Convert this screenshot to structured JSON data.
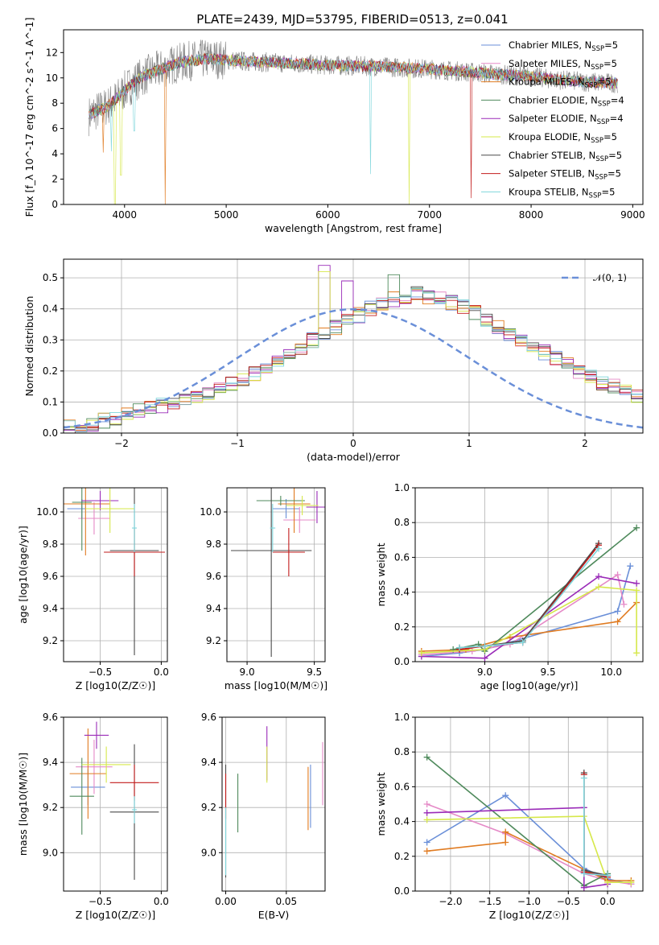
{
  "figure": {
    "title": "PLATE=2439, MJD=53795, FIBERID=0513, z=0.041"
  },
  "model_colors": {
    "Chabrier MILES": "#6a8fd8",
    "Salpeter MILES": "#e58ac7",
    "Kroupa MILES": "#e07b21",
    "Chabrier ELODIE": "#4f8a5c",
    "Salpeter ELODIE": "#9a2bb8",
    "Kroupa ELODIE": "#d6e84a",
    "Chabrier STELIB": "#4a4a4a",
    "Salpeter STELIB": "#c21b1b",
    "Kroupa STELIB": "#7fd6dc",
    "data_spectrum": "#808080"
  },
  "chart_data": [
    {
      "id": "spectrum",
      "type": "line",
      "title": "PLATE=2439, MJD=53795, FIBERID=0513, z=0.041",
      "xlabel": "wavelength [Angstrom, rest frame]",
      "ylabel": "Flux [f_λ 10^-17 erg cm^-2 s^-1 A^-1]",
      "xlim": [
        3400,
        9100
      ],
      "ylim": [
        0,
        13.8
      ],
      "xticks": [
        4000,
        5000,
        6000,
        7000,
        8000,
        9000
      ],
      "yticks": [
        0,
        2,
        4,
        6,
        8,
        10,
        12
      ],
      "legend": "upper-right",
      "series": [
        {
          "name": "Chabrier MILES, N_SSP=5",
          "label_main": "Chabrier MILES, N",
          "label_sub": "SSP",
          "label_end": "=5"
        },
        {
          "name": "Salpeter MILES, N_SSP=5",
          "label_main": "Salpeter MILES, N",
          "label_sub": "SSP",
          "label_end": "=5"
        },
        {
          "name": "Kroupa MILES, N_SSP=5",
          "label_main": "Kroupa MILES, N",
          "label_sub": "SSP",
          "label_end": "=5"
        },
        {
          "name": "Chabrier ELODIE, N_SSP=4",
          "label_main": "Chabrier ELODIE, N",
          "label_sub": "SSP",
          "label_end": "=4"
        },
        {
          "name": "Salpeter ELODIE, N_SSP=4",
          "label_main": "Salpeter ELODIE, N",
          "label_sub": "SSP",
          "label_end": "=4"
        },
        {
          "name": "Kroupa ELODIE, N_SSP=5",
          "label_main": "Kroupa ELODIE, N",
          "label_sub": "SSP",
          "label_end": "=5"
        },
        {
          "name": "Chabrier STELIB, N_SSP=5",
          "label_main": "Chabrier STELIB, N",
          "label_sub": "SSP",
          "label_end": "=5"
        },
        {
          "name": "Salpeter STELIB, N_SSP=5",
          "label_main": "Salpeter STELIB, N",
          "label_sub": "SSP",
          "label_end": "=5"
        },
        {
          "name": "Kroupa STELIB, N_SSP=5",
          "label_main": "Kroupa STELIB, N",
          "label_sub": "SSP",
          "label_end": "=5"
        }
      ],
      "spectrum_profile": {
        "x": [
          3650,
          3700,
          3800,
          3900,
          4000,
          4100,
          4200,
          4300,
          4400,
          4500,
          4600,
          4700,
          4800,
          4900,
          5000,
          5200,
          5500,
          6000,
          6500,
          7000,
          7500,
          7800,
          8000,
          8200,
          8500,
          8800
        ],
        "y": [
          7.0,
          7.3,
          7.6,
          8.2,
          9.0,
          9.7,
          10.2,
          10.5,
          10.8,
          11.1,
          11.3,
          11.4,
          11.5,
          11.5,
          11.4,
          11.3,
          11.2,
          11.0,
          10.9,
          10.7,
          10.4,
          10.2,
          10.1,
          9.9,
          9.7,
          9.6
        ]
      },
      "model_dips": [
        {
          "series": "Kroupa ELODIE, N_SSP=5",
          "x": 3905,
          "y": 0.0
        },
        {
          "series": "Kroupa ELODIE, N_SSP=5",
          "x": 3965,
          "y": 2.3
        },
        {
          "series": "Kroupa MILES, N_SSP=5",
          "x": 3790,
          "y": 4.1
        },
        {
          "series": "Kroupa STELIB, N_SSP=5",
          "x": 3870,
          "y": 4.2
        },
        {
          "series": "Kroupa STELIB, N_SSP=5",
          "x": 4095,
          "y": 5.8
        },
        {
          "series": "Kroupa MILES, N_SSP=5",
          "x": 4400,
          "y": 0.0
        },
        {
          "series": "Kroupa STELIB, N_SSP=5",
          "x": 6420,
          "y": 2.4
        },
        {
          "series": "Kroupa ELODIE, N_SSP=5",
          "x": 6800,
          "y": 0.0
        },
        {
          "series": "Salpeter STELIB, N_SSP=5",
          "x": 7410,
          "y": 0.5
        }
      ]
    },
    {
      "id": "residuals",
      "type": "line",
      "xlabel": "(data-model)/error",
      "ylabel": "Normed distribution",
      "xlim": [
        -2.5,
        2.5
      ],
      "ylim": [
        0,
        0.56
      ],
      "xticks": [
        -2,
        -1,
        0,
        1,
        2
      ],
      "yticks": [
        0.0,
        0.1,
        0.2,
        0.3,
        0.4,
        0.5
      ],
      "legend": "upper-right",
      "reference": {
        "name": "N(0,1)",
        "label": "𝒩(0, 1)",
        "mean": 0,
        "sigma": 1
      },
      "bin_edges_from": -2.5,
      "bin_width": 0.1,
      "base_values": [
        0.02,
        0.02,
        0.03,
        0.04,
        0.05,
        0.06,
        0.07,
        0.08,
        0.09,
        0.1,
        0.11,
        0.12,
        0.13,
        0.14,
        0.16,
        0.17,
        0.19,
        0.21,
        0.23,
        0.25,
        0.27,
        0.3,
        0.32,
        0.34,
        0.36,
        0.38,
        0.4,
        0.42,
        0.43,
        0.44,
        0.45,
        0.44,
        0.43,
        0.42,
        0.41,
        0.39,
        0.36,
        0.34,
        0.32,
        0.3,
        0.28,
        0.26,
        0.24,
        0.22,
        0.2,
        0.18,
        0.16,
        0.15,
        0.14,
        0.12,
        0.11,
        0.1,
        0.09,
        0.08,
        0.07,
        0.06,
        0.05,
        0.04,
        0.04,
        0.03,
        0.03,
        0.02,
        0.02,
        0.02
      ],
      "peaks": [
        {
          "series": "Kroupa ELODIE, N_SSP=5",
          "x": -0.25,
          "y": 0.52
        },
        {
          "series": "Salpeter ELODIE, N_SSP=4",
          "x": -0.25,
          "y": 0.54
        },
        {
          "series": "Chabrier ELODIE, N_SSP=4",
          "x": 0.35,
          "y": 0.51
        },
        {
          "series": "Salpeter ELODIE, N_SSP=4",
          "x": -0.05,
          "y": 0.49
        }
      ]
    },
    {
      "id": "Z-age",
      "type": "scatter",
      "xlabel": "Z [log10(Z/Z☉)]",
      "ylabel": "age [log10(age/yr)]",
      "xlim": [
        -0.8,
        0.05
      ],
      "ylim": [
        9.07,
        10.15
      ],
      "xticks": [
        -0.5,
        0.0
      ],
      "yticks": [
        9.2,
        9.4,
        9.6,
        9.8,
        10.0
      ],
      "points": [
        {
          "series": "Chabrier MILES, N_SSP=5",
          "x": -0.65,
          "y": 10.02,
          "xerr": 0.12,
          "yerr": 0.06
        },
        {
          "series": "Salpeter MILES, N_SSP=5",
          "x": -0.55,
          "y": 9.96,
          "xerr": 0.13,
          "yerr": 0.1
        },
        {
          "series": "Kroupa MILES, N_SSP=5",
          "x": -0.62,
          "y": 10.05,
          "xerr": 0.2,
          "yerr": 0.32
        },
        {
          "series": "Chabrier ELODIE, N_SSP=4",
          "x": -0.65,
          "y": 10.06,
          "xerr": 0.08,
          "yerr": 0.3
        },
        {
          "series": "Salpeter ELODIE, N_SSP=4",
          "x": -0.5,
          "y": 10.07,
          "xerr": 0.15,
          "yerr": 0.06
        },
        {
          "series": "Kroupa ELODIE, N_SSP=5",
          "x": -0.42,
          "y": 10.02,
          "xerr": 0.2,
          "yerr": 0.15
        },
        {
          "series": "Chabrier STELIB, N_SSP=5",
          "x": -0.22,
          "y": 9.76,
          "xerr": 0.2,
          "yerr": 0.65
        },
        {
          "series": "Salpeter STELIB, N_SSP=5",
          "x": -0.22,
          "y": 9.75,
          "xerr": 0.25,
          "yerr": 0.15
        },
        {
          "series": "Kroupa STELIB, N_SSP=5",
          "x": -0.22,
          "y": 9.9,
          "xerr": 0.02,
          "yerr": 0.15
        }
      ]
    },
    {
      "id": "mass-age",
      "type": "scatter",
      "xlabel": "mass [log10(M/M☉)]",
      "ylabel": "",
      "xlim": [
        8.85,
        9.58
      ],
      "ylim": [
        9.07,
        10.15
      ],
      "xticks": [
        9.0,
        9.5
      ],
      "yticks": [
        9.2,
        9.4,
        9.6,
        9.8,
        10.0
      ],
      "points": [
        {
          "series": "Chabrier MILES, N_SSP=5",
          "x": 9.29,
          "y": 10.02,
          "xerr": 0.1,
          "yerr": 0.06
        },
        {
          "series": "Salpeter MILES, N_SSP=5",
          "x": 9.39,
          "y": 9.95,
          "xerr": 0.12,
          "yerr": 0.08
        },
        {
          "series": "Kroupa MILES, N_SSP=5",
          "x": 9.35,
          "y": 10.05,
          "xerr": 0.12,
          "yerr": 0.18
        },
        {
          "series": "Chabrier ELODIE, N_SSP=4",
          "x": 9.25,
          "y": 10.07,
          "xerr": 0.18,
          "yerr": 0.03
        },
        {
          "series": "Salpeter ELODIE, N_SSP=4",
          "x": 9.52,
          "y": 10.03,
          "xerr": 0.08,
          "yerr": 0.1
        },
        {
          "series": "Kroupa ELODIE, N_SSP=5",
          "x": 9.41,
          "y": 10.04,
          "xerr": 0.12,
          "yerr": 0.06
        },
        {
          "series": "Chabrier STELIB, N_SSP=5",
          "x": 9.18,
          "y": 9.76,
          "xerr": 0.3,
          "yerr": 0.66
        },
        {
          "series": "Salpeter STELIB, N_SSP=5",
          "x": 9.31,
          "y": 9.75,
          "xerr": 0.12,
          "yerr": 0.15
        },
        {
          "series": "Kroupa STELIB, N_SSP=5",
          "x": 9.19,
          "y": 9.9,
          "xerr": 0.02,
          "yerr": 0.15
        }
      ]
    },
    {
      "id": "age-massweight",
      "type": "line",
      "xlabel": "age [log10(age/yr)]",
      "ylabel": "mass weight",
      "xlim": [
        8.45,
        10.25
      ],
      "ylim": [
        0.0,
        1.0
      ],
      "xticks": [
        9.0,
        9.5,
        10.0
      ],
      "yticks": [
        0.0,
        0.2,
        0.4,
        0.6,
        0.8,
        1.0
      ],
      "series": [
        {
          "series": "Chabrier MILES, N_SSP=5",
          "x": [
            8.5,
            8.8,
            9.0,
            10.05,
            10.15
          ],
          "y": [
            0.03,
            0.05,
            0.07,
            0.29,
            0.55
          ]
        },
        {
          "series": "Salpeter MILES, N_SSP=5",
          "x": [
            8.5,
            8.9,
            9.2,
            10.05,
            10.1
          ],
          "y": [
            0.04,
            0.06,
            0.1,
            0.5,
            0.33
          ]
        },
        {
          "series": "Kroupa MILES, N_SSP=5",
          "x": [
            8.5,
            8.85,
            9.2,
            10.05,
            10.2
          ],
          "y": [
            0.06,
            0.07,
            0.14,
            0.23,
            0.34
          ]
        },
        {
          "series": "Chabrier ELODIE, N_SSP=4",
          "x": [
            8.75,
            8.95,
            9.0,
            10.2
          ],
          "y": [
            0.07,
            0.1,
            0.06,
            0.77
          ]
        },
        {
          "series": "Salpeter ELODIE, N_SSP=4",
          "x": [
            8.5,
            9.0,
            9.9,
            10.2
          ],
          "y": [
            0.03,
            0.02,
            0.49,
            0.45
          ]
        },
        {
          "series": "Kroupa ELODIE, N_SSP=5",
          "x": [
            8.5,
            9.0,
            9.9,
            10.2,
            10.2
          ],
          "y": [
            0.05,
            0.07,
            0.43,
            0.41,
            0.05
          ]
        },
        {
          "series": "Chabrier STELIB, N_SSP=5",
          "x": [
            8.8,
            9.0,
            9.3,
            9.9
          ],
          "y": [
            0.08,
            0.09,
            0.12,
            0.68
          ]
        },
        {
          "series": "Salpeter STELIB, N_SSP=5",
          "x": [
            8.8,
            9.0,
            9.3,
            9.9
          ],
          "y": [
            0.07,
            0.09,
            0.11,
            0.67
          ]
        },
        {
          "series": "Kroupa STELIB, N_SSP=5",
          "x": [
            8.8,
            9.0,
            9.3,
            9.9
          ],
          "y": [
            0.08,
            0.09,
            0.11,
            0.65
          ]
        }
      ]
    },
    {
      "id": "Z-mass",
      "type": "scatter",
      "xlabel": "Z [log10(Z/Z☉)]",
      "ylabel": "mass [log10(M/M☉)]",
      "xlim": [
        -0.8,
        0.05
      ],
      "ylim": [
        8.83,
        9.6
      ],
      "xticks": [
        -0.5,
        0.0
      ],
      "yticks": [
        9.0,
        9.2,
        9.4,
        9.6
      ],
      "points": [
        {
          "series": "Chabrier MILES, N_SSP=5",
          "x": -0.6,
          "y": 9.29,
          "xerr": 0.14,
          "yerr": 0.08
        },
        {
          "series": "Salpeter MILES, N_SSP=5",
          "x": -0.55,
          "y": 9.38,
          "xerr": 0.15,
          "yerr": 0.12
        },
        {
          "series": "Kroupa MILES, N_SSP=5",
          "x": -0.6,
          "y": 9.35,
          "xerr": 0.15,
          "yerr": 0.2
        },
        {
          "series": "Chabrier ELODIE, N_SSP=4",
          "x": -0.65,
          "y": 9.25,
          "xerr": 0.1,
          "yerr": 0.17
        },
        {
          "series": "Salpeter ELODIE, N_SSP=4",
          "x": -0.53,
          "y": 9.52,
          "xerr": 0.1,
          "yerr": 0.06
        },
        {
          "series": "Kroupa ELODIE, N_SSP=5",
          "x": -0.45,
          "y": 9.39,
          "xerr": 0.2,
          "yerr": 0.08
        },
        {
          "series": "Chabrier STELIB, N_SSP=5",
          "x": -0.22,
          "y": 9.18,
          "xerr": 0.2,
          "yerr": 0.3
        },
        {
          "series": "Salpeter STELIB, N_SSP=5",
          "x": -0.22,
          "y": 9.31,
          "xerr": 0.2,
          "yerr": 0.08
        },
        {
          "series": "Kroupa STELIB, N_SSP=5",
          "x": -0.22,
          "y": 9.19,
          "xerr": 0.02,
          "yerr": 0.06
        }
      ]
    },
    {
      "id": "ebv-mass",
      "type": "scatter",
      "xlabel": "E(B-V)",
      "ylabel": "",
      "xlim": [
        -0.003,
        0.082
      ],
      "ylim": [
        8.83,
        9.6
      ],
      "xticks": [
        0.0,
        0.05
      ],
      "yticks": [
        9.0,
        9.2,
        9.4,
        9.6
      ],
      "points": [
        {
          "series": "Chabrier MILES, N_SSP=5",
          "x": 0.07,
          "y": 9.25,
          "xerr": 0,
          "yerr": 0.14
        },
        {
          "series": "Salpeter MILES, N_SSP=5",
          "x": 0.08,
          "y": 9.35,
          "xerr": 0,
          "yerr": 0.14
        },
        {
          "series": "Kroupa MILES, N_SSP=5",
          "x": 0.068,
          "y": 9.24,
          "xerr": 0,
          "yerr": 0.14
        },
        {
          "series": "Chabrier ELODIE, N_SSP=4",
          "x": 0.01,
          "y": 9.22,
          "xerr": 0,
          "yerr": 0.13
        },
        {
          "series": "Salpeter ELODIE, N_SSP=4",
          "x": 0.034,
          "y": 9.44,
          "xerr": 0,
          "yerr": 0.12
        },
        {
          "series": "Kroupa ELODIE, N_SSP=5",
          "x": 0.034,
          "y": 9.39,
          "xerr": 0,
          "yerr": 0.08
        },
        {
          "series": "Chabrier STELIB, N_SSP=5",
          "x": 0.0,
          "y": 9.14,
          "xerr": 0,
          "yerr": 0.25
        },
        {
          "series": "Salpeter STELIB, N_SSP=5",
          "x": 0.0,
          "y": 9.25,
          "xerr": 0,
          "yerr": 0.1
        },
        {
          "series": "Kroupa STELIB, N_SSP=5",
          "x": 0.0,
          "y": 9.05,
          "xerr": 0,
          "yerr": 0.15
        }
      ]
    },
    {
      "id": "Z-massweight",
      "type": "line",
      "xlabel": "Z [log10(Z/Z☉)]",
      "ylabel": "mass weight",
      "xlim": [
        -2.45,
        0.45
      ],
      "ylim": [
        0.0,
        1.0
      ],
      "xticks": [
        -2.0,
        -1.5,
        -1.0,
        -0.5,
        0.0
      ],
      "yticks": [
        0.0,
        0.2,
        0.4,
        0.6,
        0.8,
        1.0
      ],
      "series": [
        {
          "series": "Chabrier MILES, N_SSP=5",
          "x": [
            -2.3,
            -1.3,
            -0.3,
            0.0,
            0.3
          ],
          "y": [
            0.28,
            0.55,
            0.13,
            0.07,
            0.04
          ]
        },
        {
          "series": "Salpeter MILES, N_SSP=5",
          "x": [
            -2.3,
            -1.3,
            -0.3,
            0.0,
            0.3
          ],
          "y": [
            0.5,
            0.33,
            0.1,
            0.06,
            0.04
          ]
        },
        {
          "series": "Kroupa MILES, N_SSP=5",
          "x": [
            -2.3,
            -1.3,
            -1.3,
            0.0,
            0.3
          ],
          "y": [
            0.23,
            0.28,
            0.34,
            0.06,
            0.06
          ]
        },
        {
          "series": "Chabrier ELODIE, N_SSP=4",
          "x": [
            -2.3,
            -0.3,
            0.0
          ],
          "y": [
            0.77,
            0.03,
            0.1
          ]
        },
        {
          "series": "Salpeter ELODIE, N_SSP=4",
          "x": [
            -2.3,
            -0.3,
            -0.3,
            0.0
          ],
          "y": [
            0.45,
            0.48,
            0.02,
            0.04
          ]
        },
        {
          "series": "Kroupa ELODIE, N_SSP=5",
          "x": [
            -2.3,
            -0.3,
            0.0,
            0.3
          ],
          "y": [
            0.41,
            0.43,
            0.05,
            0.05
          ]
        },
        {
          "series": "Chabrier STELIB, N_SSP=5",
          "x": [
            -0.3,
            -0.3,
            0.0
          ],
          "y": [
            0.68,
            0.12,
            0.09
          ]
        },
        {
          "series": "Salpeter STELIB, N_SSP=5",
          "x": [
            -0.3,
            -0.3,
            0.0
          ],
          "y": [
            0.67,
            0.11,
            0.08
          ]
        },
        {
          "series": "Kroupa STELIB, N_SSP=5",
          "x": [
            -0.3,
            -0.3,
            0.0
          ],
          "y": [
            0.65,
            0.1,
            0.09
          ]
        }
      ]
    }
  ]
}
